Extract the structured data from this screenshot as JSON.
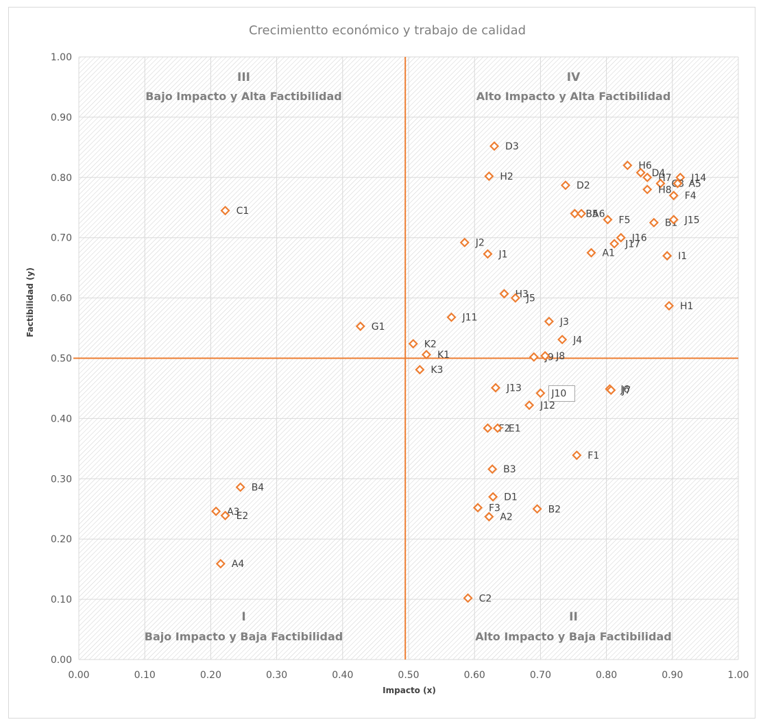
{
  "chart_data": {
    "type": "scatter",
    "title": "Crecimientto económico y trabajo de calidad",
    "xlabel": "Impacto (x)",
    "ylabel": "Factibilidad (y)",
    "xlim": [
      0,
      1
    ],
    "ylim": [
      0,
      1
    ],
    "xticks": [
      "0.00",
      "0.10",
      "0.20",
      "0.30",
      "0.40",
      "0.50",
      "0.60",
      "0.70",
      "0.80",
      "0.90",
      "1.00"
    ],
    "yticks": [
      "0.00",
      "0.10",
      "0.20",
      "0.30",
      "0.40",
      "0.50",
      "0.60",
      "0.70",
      "0.80",
      "0.90",
      "1.00"
    ],
    "grid": true,
    "background_pattern": "diagonal hatch",
    "marker": "hollow diamond",
    "colors": {
      "marker": "#ed7d31",
      "divider": "#ed7d31",
      "grid": "#d9d9d9"
    },
    "dividers": {
      "x": 0.495,
      "y": 0.5
    },
    "quadrants": [
      {
        "num": "III",
        "label": "Bajo Impacto y Alta Factibilidad",
        "position": "top-left"
      },
      {
        "num": "IV",
        "label": "Alto Impacto y Alta Factibilidad",
        "position": "top-right"
      },
      {
        "num": "I",
        "label": "Bajo Impacto y Baja Factibilidad",
        "position": "bottom-left"
      },
      {
        "num": "II",
        "label": "Alto Impacto y Baja Factibilidad",
        "position": "bottom-right"
      }
    ],
    "points": [
      {
        "label": "D3",
        "x": 0.63,
        "y": 0.852
      },
      {
        "label": "H2",
        "x": 0.622,
        "y": 0.802
      },
      {
        "label": "D2",
        "x": 0.738,
        "y": 0.787
      },
      {
        "label": "C1",
        "x": 0.222,
        "y": 0.745
      },
      {
        "label": "H6",
        "x": 0.832,
        "y": 0.82
      },
      {
        "label": "D4",
        "x": 0.852,
        "y": 0.808
      },
      {
        "label": "H7",
        "x": 0.862,
        "y": 0.8
      },
      {
        "label": "J14",
        "x": 0.912,
        "y": 0.8
      },
      {
        "label": "C3",
        "x": 0.882,
        "y": 0.79
      },
      {
        "label": "A5",
        "x": 0.908,
        "y": 0.79
      },
      {
        "label": "H8",
        "x": 0.862,
        "y": 0.78
      },
      {
        "label": "F4",
        "x": 0.902,
        "y": 0.77
      },
      {
        "label": "B5",
        "x": 0.752,
        "y": 0.74
      },
      {
        "label": "A6",
        "x": 0.762,
        "y": 0.74
      },
      {
        "label": "F5",
        "x": 0.802,
        "y": 0.73
      },
      {
        "label": "B1",
        "x": 0.872,
        "y": 0.725
      },
      {
        "label": "J15",
        "x": 0.902,
        "y": 0.73
      },
      {
        "label": "J2",
        "x": 0.585,
        "y": 0.692
      },
      {
        "label": "J1",
        "x": 0.62,
        "y": 0.673
      },
      {
        "label": "J16",
        "x": 0.822,
        "y": 0.7
      },
      {
        "label": "J17",
        "x": 0.812,
        "y": 0.69
      },
      {
        "label": "A1",
        "x": 0.777,
        "y": 0.675
      },
      {
        "label": "I1",
        "x": 0.892,
        "y": 0.67
      },
      {
        "label": "H3",
        "x": 0.645,
        "y": 0.607
      },
      {
        "label": "J5",
        "x": 0.662,
        "y": 0.6
      },
      {
        "label": "H1",
        "x": 0.895,
        "y": 0.587
      },
      {
        "label": "J11",
        "x": 0.565,
        "y": 0.568
      },
      {
        "label": "G1",
        "x": 0.427,
        "y": 0.553
      },
      {
        "label": "J3",
        "x": 0.713,
        "y": 0.561
      },
      {
        "label": "J4",
        "x": 0.733,
        "y": 0.531
      },
      {
        "label": "K2",
        "x": 0.507,
        "y": 0.524
      },
      {
        "label": "K1",
        "x": 0.527,
        "y": 0.506
      },
      {
        "label": "J9",
        "x": 0.69,
        "y": 0.502
      },
      {
        "label": "J8",
        "x": 0.707,
        "y": 0.504
      },
      {
        "label": "K3",
        "x": 0.517,
        "y": 0.481
      },
      {
        "label": "J13",
        "x": 0.632,
        "y": 0.451
      },
      {
        "label": "J10",
        "x": 0.7,
        "y": 0.442
      },
      {
        "label": "J6",
        "x": 0.805,
        "y": 0.449
      },
      {
        "label": "J7",
        "x": 0.807,
        "y": 0.447
      },
      {
        "label": "J12",
        "x": 0.683,
        "y": 0.422
      },
      {
        "label": "F2",
        "x": 0.62,
        "y": 0.384
      },
      {
        "label": "E1",
        "x": 0.635,
        "y": 0.384
      },
      {
        "label": "F1",
        "x": 0.755,
        "y": 0.339
      },
      {
        "label": "B3",
        "x": 0.627,
        "y": 0.316
      },
      {
        "label": "B4",
        "x": 0.245,
        "y": 0.286
      },
      {
        "label": "D1",
        "x": 0.628,
        "y": 0.27
      },
      {
        "label": "F3",
        "x": 0.605,
        "y": 0.252
      },
      {
        "label": "B2",
        "x": 0.695,
        "y": 0.25
      },
      {
        "label": "A2",
        "x": 0.622,
        "y": 0.237
      },
      {
        "label": "A3",
        "x": 0.208,
        "y": 0.246
      },
      {
        "label": "E2",
        "x": 0.222,
        "y": 0.239
      },
      {
        "label": "A4",
        "x": 0.215,
        "y": 0.159
      },
      {
        "label": "C2",
        "x": 0.59,
        "y": 0.102
      }
    ],
    "boxed_labels": [
      "J10"
    ]
  }
}
